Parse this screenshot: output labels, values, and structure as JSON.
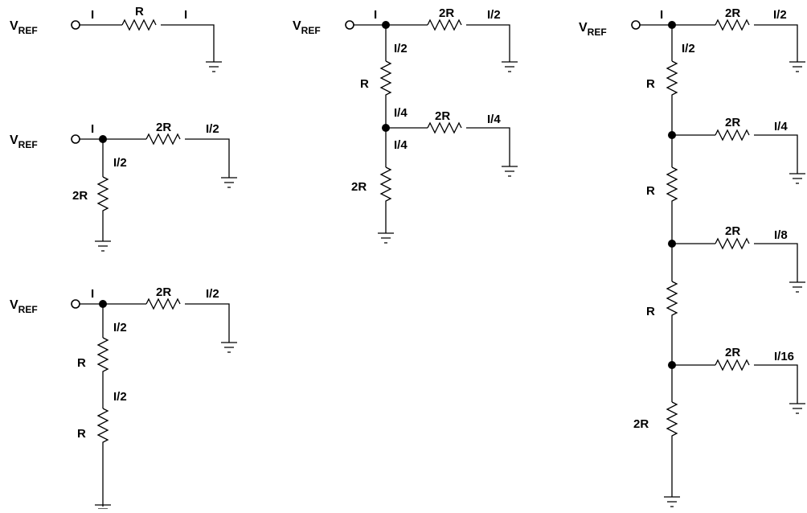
{
  "circuits": [
    {
      "vref": {
        "main": "V",
        "sub": "REF"
      },
      "labels": {
        "input_current": "I",
        "series_resistor": "R",
        "output_current": "I"
      }
    },
    {
      "vref": {
        "main": "V",
        "sub": "REF"
      },
      "labels": {
        "input_current": "I",
        "top_resistor": "2R",
        "top_current": "I/2",
        "shunt_current": "I/2",
        "shunt_resistor": "2R"
      }
    },
    {
      "vref": {
        "main": "V",
        "sub": "REF"
      },
      "labels": {
        "input_current": "I",
        "top_resistor": "2R",
        "top_current": "I/2",
        "shunt_current_1": "I/2",
        "resistor_1": "R",
        "shunt_current_2": "I/2",
        "resistor_2": "R"
      }
    },
    {
      "vref": {
        "main": "V",
        "sub": "REF"
      },
      "labels": {
        "input_current": "I",
        "top_resistor": "2R",
        "top_current": "I/2",
        "shunt_current_1": "I/2",
        "resistor_1": "R",
        "node_current_in": "I/4",
        "branch_resistor": "2R",
        "branch_current": "I/4",
        "node_current_out": "I/4",
        "bottom_resistor": "2R"
      }
    },
    {
      "vref": {
        "main": "V",
        "sub": "REF"
      },
      "labels": {
        "input_current": "I",
        "branch1_resistor": "2R",
        "branch1_current": "I/2",
        "shunt_current_1": "I/2",
        "resistor_1": "R",
        "branch2_resistor": "2R",
        "branch2_current": "I/4",
        "resistor_2": "R",
        "branch3_resistor": "2R",
        "branch3_current": "I/8",
        "resistor_3": "R",
        "branch4_resistor": "2R",
        "branch4_current": "I/16",
        "bottom_resistor": "2R"
      }
    }
  ]
}
